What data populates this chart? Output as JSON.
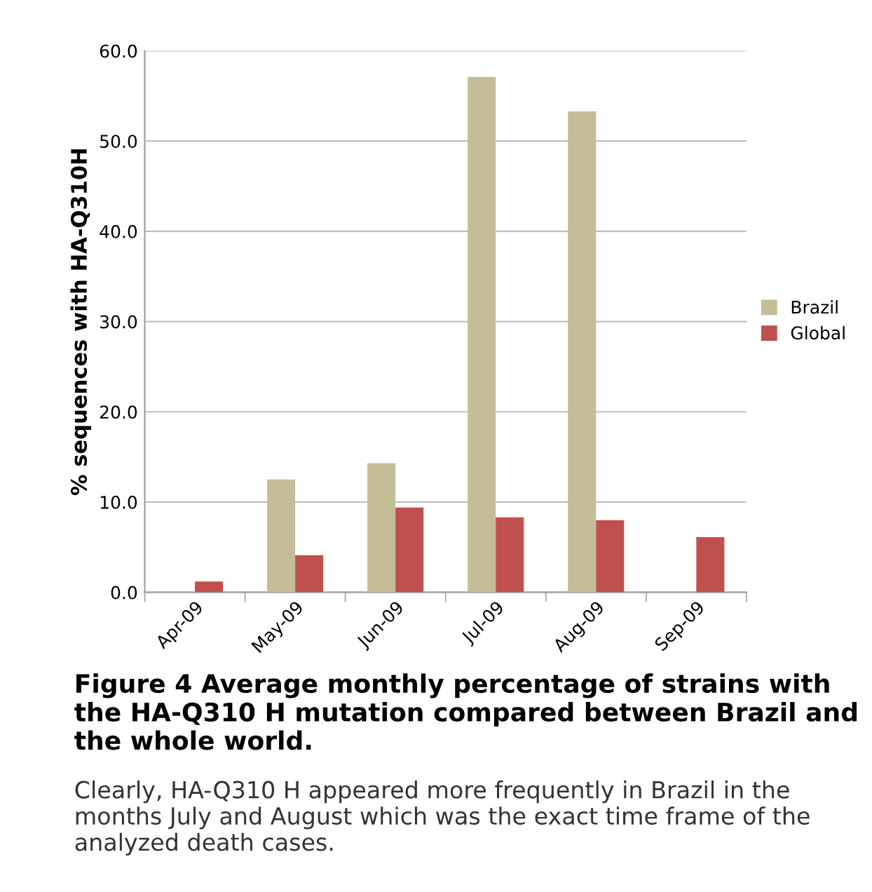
{
  "chart_data": {
    "type": "bar",
    "title": "Figure 4 Average monthly percentage of strains with the HA-Q310 H mutation compared between Brazil and the whole world.",
    "annotations": [
      "Clearly, HA-Q310 H appeared more frequently in Brazil in the months July and August which was the exact time frame of the analyzed death cases."
    ],
    "ylabel": "% sequences with HA-Q310H",
    "categories": [
      "Apr-09",
      "May-09",
      "Jun-09",
      "Jul-09",
      "Aug-09",
      "Sep-09"
    ],
    "series": [
      {
        "name": "Brazil",
        "color": "#c4bd97",
        "values": [
          0,
          12.5,
          14.3,
          57.1,
          53.3,
          0
        ]
      },
      {
        "name": "Global",
        "color": "#c0504d",
        "values": [
          1.2,
          4.1,
          9.4,
          8.3,
          8.0,
          6.1
        ]
      }
    ],
    "ylim": [
      0,
      60
    ],
    "yticks": [
      {
        "value": 0,
        "label": "0.0"
      },
      {
        "value": 10,
        "label": "10.0"
      },
      {
        "value": 20,
        "label": "20.0"
      },
      {
        "value": 30,
        "label": "30.0"
      },
      {
        "value": 40,
        "label": "40.0"
      },
      {
        "value": 50,
        "label": "50.0"
      },
      {
        "value": 60,
        "label": "60.0"
      }
    ],
    "grid": "y",
    "legend": "right"
  }
}
